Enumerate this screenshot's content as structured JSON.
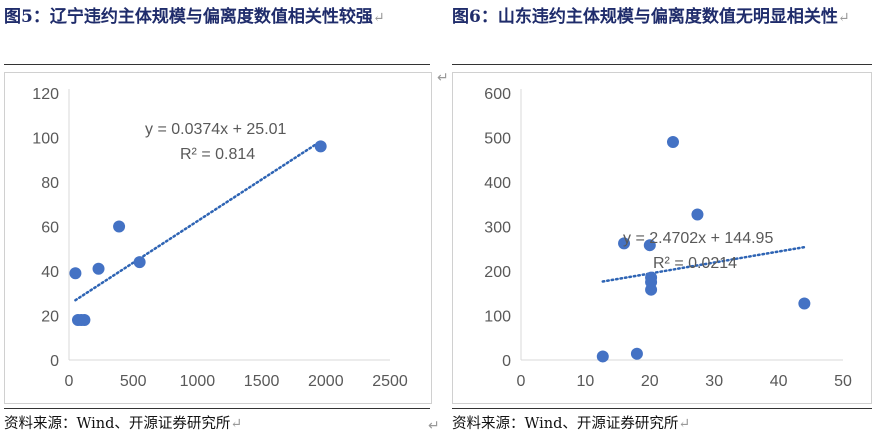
{
  "figures": [
    {
      "title_text": "图5：辽宁违约主体规模与偏离度数值相关性较强",
      "source": "资料来源：Wind、开源证券研究所"
    },
    {
      "title_text": "图6：山东违约主体规模与偏离度数值无明显相关性",
      "source": "资料来源：Wind、开源证券研究所"
    }
  ],
  "colors": {
    "point": "#4472c4",
    "trend": "#2e64b4",
    "axis": "#d9d9d9",
    "text": "#595959",
    "title": "#1f2c6b"
  },
  "chart_data": [
    {
      "type": "scatter",
      "title": "",
      "xlabel": "",
      "ylabel": "",
      "xlim": [
        0,
        2500
      ],
      "ylim": [
        0,
        120
      ],
      "x_ticks": [
        0,
        500,
        1000,
        1500,
        2000,
        2500
      ],
      "y_ticks": [
        0,
        20,
        40,
        60,
        80,
        100,
        120
      ],
      "points": [
        {
          "x": 50,
          "y": 39
        },
        {
          "x": 70,
          "y": 18
        },
        {
          "x": 95,
          "y": 18
        },
        {
          "x": 120,
          "y": 18
        },
        {
          "x": 230,
          "y": 41
        },
        {
          "x": 390,
          "y": 60
        },
        {
          "x": 550,
          "y": 44
        },
        {
          "x": 1960,
          "y": 96
        }
      ],
      "trendline": {
        "slope": 0.0374,
        "intercept": 25.01,
        "x_range": [
          50,
          1960
        ]
      },
      "equation": "y = 0.0374x + 25.01",
      "r2": "R² = 0.814",
      "grid": false
    },
    {
      "type": "scatter",
      "title": "",
      "xlabel": "",
      "ylabel": "",
      "xlim": [
        0,
        50
      ],
      "ylim": [
        0,
        600
      ],
      "x_ticks": [
        0,
        10,
        20,
        30,
        40,
        50
      ],
      "y_ticks": [
        0,
        100,
        200,
        300,
        400,
        500,
        600
      ],
      "points": [
        {
          "x": 12.7,
          "y": 8
        },
        {
          "x": 16,
          "y": 262
        },
        {
          "x": 18,
          "y": 14
        },
        {
          "x": 20,
          "y": 258
        },
        {
          "x": 20.2,
          "y": 185
        },
        {
          "x": 20.2,
          "y": 175
        },
        {
          "x": 20.2,
          "y": 158
        },
        {
          "x": 23.6,
          "y": 490
        },
        {
          "x": 27.4,
          "y": 327
        },
        {
          "x": 44,
          "y": 127
        }
      ],
      "trendline": {
        "slope": 2.4702,
        "intercept": 144.95,
        "x_range": [
          12.7,
          44
        ]
      },
      "equation": "y = 2.4702x + 144.95",
      "r2": "R² = 0.0214",
      "grid": false
    }
  ]
}
